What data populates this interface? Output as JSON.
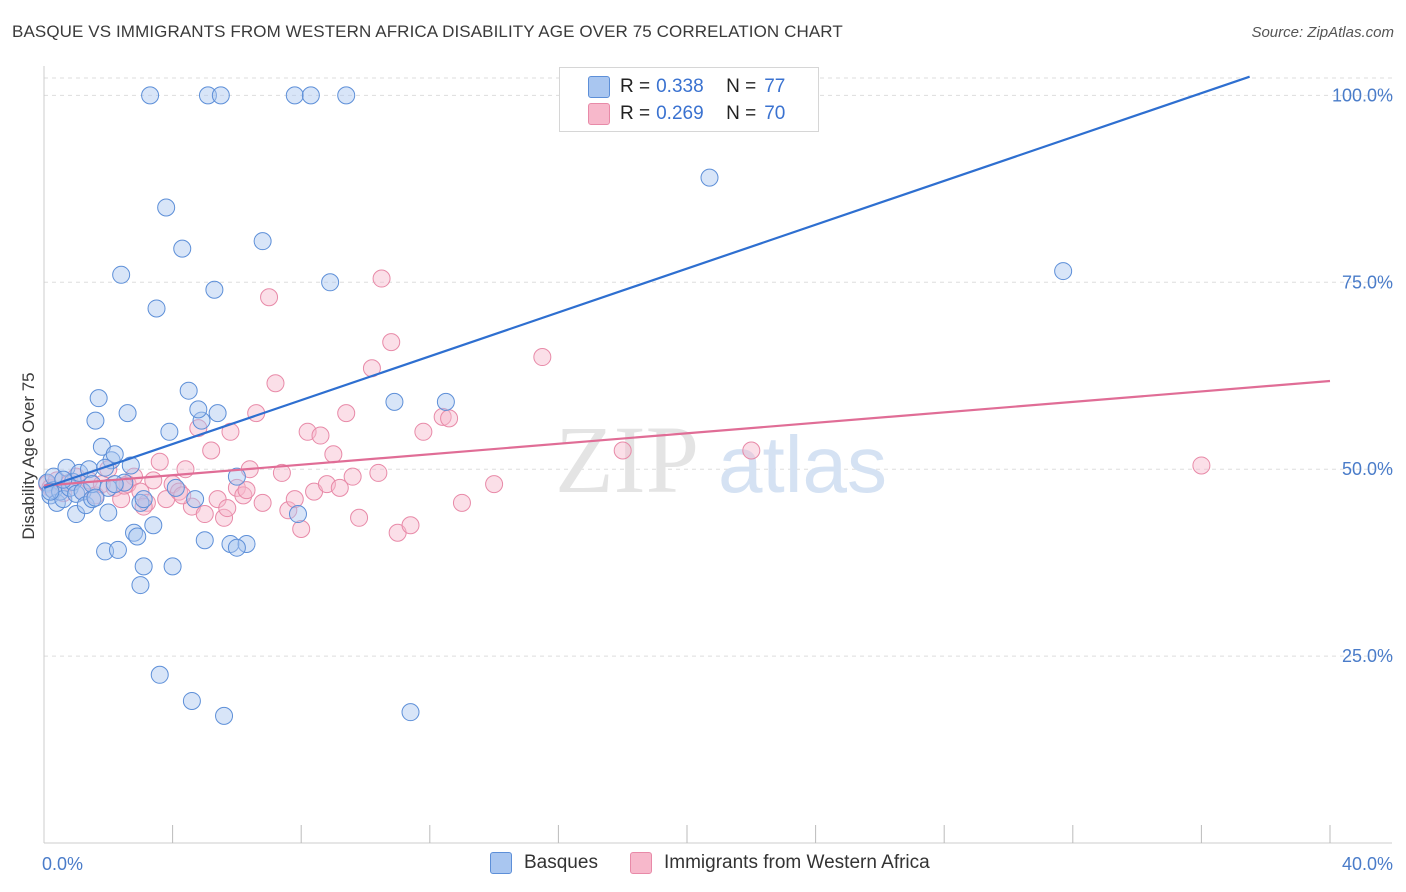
{
  "title": "BASQUE VS IMMIGRANTS FROM WESTERN AFRICA DISABILITY AGE OVER 75 CORRELATION CHART",
  "source": "Source: ZipAtlas.com",
  "watermark": {
    "zip": "ZIP",
    "atlas": "atlas"
  },
  "legend_top": [
    {
      "r_key": "R =",
      "r_value": "0.338",
      "n_key": "N =",
      "n_value": "77"
    },
    {
      "r_key": "R =",
      "r_value": "0.269",
      "n_key": "N =",
      "n_value": "70"
    }
  ],
  "legend_bottom": [
    "Basques",
    "Immigrants from Western Africa"
  ],
  "colors": {
    "basque_fill": "#a9c6f0",
    "basque_stroke": "#5d8fd8",
    "basque_line": "#2e6fd0",
    "africa_fill": "#f7b8cb",
    "africa_stroke": "#e88aa8",
    "africa_line": "#e06d96",
    "tick_label": "#4a7cc9",
    "grid": "#dddddd"
  },
  "chart_data": {
    "type": "scatter",
    "title": "BASQUE VS IMMIGRANTS FROM WESTERN AFRICA DISABILITY AGE OVER 75 CORRELATION CHART",
    "xlabel": "",
    "ylabel": "Disability Age Over 75",
    "xlim": [
      0,
      40
    ],
    "ylim": [
      0,
      105
    ],
    "x_tick_labels": [
      "0.0%",
      "40.0%"
    ],
    "y_ticks": [
      25,
      50,
      75,
      100
    ],
    "y_tick_labels": [
      "25.0%",
      "50.0%",
      "75.0%",
      "100.0%"
    ],
    "x_minor_ticks": [
      4,
      8,
      12,
      16,
      20,
      24,
      28,
      32,
      36,
      40
    ],
    "grid": true,
    "legend_position": "top-center",
    "series": [
      {
        "name": "Basques",
        "r": 0.338,
        "n": 77,
        "trend": {
          "x": [
            0,
            37.5
          ],
          "y": [
            47.5,
            102.5
          ]
        },
        "points": [
          [
            0.1,
            48.2
          ],
          [
            0.2,
            46.5
          ],
          [
            0.3,
            47.2
          ],
          [
            0.3,
            49.0
          ],
          [
            0.4,
            45.5
          ],
          [
            0.5,
            47.0
          ],
          [
            0.6,
            46.0
          ],
          [
            0.7,
            50.2
          ],
          [
            0.8,
            47.5
          ],
          [
            0.9,
            48.3
          ],
          [
            1.0,
            46.7
          ],
          [
            1.0,
            44.0
          ],
          [
            1.1,
            49.5
          ],
          [
            1.2,
            47.0
          ],
          [
            1.3,
            45.2
          ],
          [
            1.4,
            50.0
          ],
          [
            1.5,
            46.0
          ],
          [
            1.5,
            48.0
          ],
          [
            1.6,
            56.5
          ],
          [
            1.7,
            59.5
          ],
          [
            1.8,
            53.0
          ],
          [
            1.9,
            39.0
          ],
          [
            2.0,
            47.5
          ],
          [
            2.1,
            51.2
          ],
          [
            2.2,
            52.0
          ],
          [
            2.3,
            39.2
          ],
          [
            2.4,
            76.0
          ],
          [
            2.5,
            48.2
          ],
          [
            2.6,
            57.5
          ],
          [
            2.7,
            50.5
          ],
          [
            2.8,
            41.5
          ],
          [
            2.9,
            41.0
          ],
          [
            3.0,
            45.5
          ],
          [
            3.1,
            46.0
          ],
          [
            3.1,
            37.0
          ],
          [
            3.3,
            100.0
          ],
          [
            3.4,
            42.5
          ],
          [
            3.5,
            71.5
          ],
          [
            3.6,
            22.5
          ],
          [
            3.8,
            85.0
          ],
          [
            3.9,
            55.0
          ],
          [
            4.0,
            37.0
          ],
          [
            4.1,
            47.5
          ],
          [
            4.3,
            79.5
          ],
          [
            4.5,
            60.5
          ],
          [
            4.6,
            19.0
          ],
          [
            4.7,
            46.0
          ],
          [
            4.9,
            56.5
          ],
          [
            5.0,
            40.5
          ],
          [
            5.1,
            100.0
          ],
          [
            5.3,
            74.0
          ],
          [
            5.4,
            57.5
          ],
          [
            5.5,
            100.0
          ],
          [
            5.6,
            17.0
          ],
          [
            5.8,
            40.0
          ],
          [
            6.0,
            49.0
          ],
          [
            6.3,
            40.0
          ],
          [
            6.8,
            80.5
          ],
          [
            7.8,
            100.0
          ],
          [
            7.9,
            44.0
          ],
          [
            8.3,
            100.0
          ],
          [
            8.9,
            75.0
          ],
          [
            9.4,
            100.0
          ],
          [
            10.9,
            59.0
          ],
          [
            11.4,
            17.5
          ],
          [
            12.5,
            59.0
          ],
          [
            20.7,
            89.0
          ],
          [
            31.7,
            76.5
          ],
          [
            0.2,
            47.0
          ],
          [
            0.6,
            48.6
          ],
          [
            1.6,
            46.2
          ],
          [
            2.0,
            44.2
          ],
          [
            4.8,
            58.0
          ],
          [
            6.0,
            39.5
          ],
          [
            3.0,
            34.5
          ],
          [
            2.2,
            48.0
          ],
          [
            1.9,
            50.2
          ]
        ]
      },
      {
        "name": "Immigrants from Western Africa",
        "r": 0.269,
        "n": 70,
        "trend": {
          "x": [
            0,
            40
          ],
          "y": [
            47.8,
            61.8
          ]
        },
        "points": [
          [
            0.1,
            48.0
          ],
          [
            0.2,
            47.5
          ],
          [
            0.4,
            48.5
          ],
          [
            0.6,
            46.8
          ],
          [
            0.8,
            48.2
          ],
          [
            1.0,
            49.0
          ],
          [
            1.2,
            47.0
          ],
          [
            1.4,
            48.5
          ],
          [
            1.6,
            46.5
          ],
          [
            1.8,
            48.0
          ],
          [
            2.0,
            50.0
          ],
          [
            2.2,
            47.5
          ],
          [
            2.4,
            46.0
          ],
          [
            2.6,
            48.0
          ],
          [
            2.8,
            49.0
          ],
          [
            3.0,
            47.0
          ],
          [
            3.2,
            45.5
          ],
          [
            3.4,
            48.5
          ],
          [
            3.6,
            51.0
          ],
          [
            3.8,
            46.0
          ],
          [
            4.0,
            48.0
          ],
          [
            4.2,
            47.0
          ],
          [
            4.4,
            50.0
          ],
          [
            4.6,
            45.0
          ],
          [
            4.8,
            55.5
          ],
          [
            5.0,
            44.0
          ],
          [
            5.2,
            52.5
          ],
          [
            5.4,
            46.0
          ],
          [
            5.6,
            43.5
          ],
          [
            5.8,
            55.0
          ],
          [
            6.0,
            47.5
          ],
          [
            6.2,
            46.5
          ],
          [
            6.4,
            50.0
          ],
          [
            6.6,
            57.5
          ],
          [
            6.8,
            45.5
          ],
          [
            7.0,
            73.0
          ],
          [
            7.2,
            61.5
          ],
          [
            7.4,
            49.5
          ],
          [
            7.6,
            44.5
          ],
          [
            7.8,
            46.0
          ],
          [
            8.0,
            42.0
          ],
          [
            8.2,
            55.0
          ],
          [
            8.4,
            47.0
          ],
          [
            8.6,
            54.5
          ],
          [
            8.8,
            48.0
          ],
          [
            9.0,
            52.0
          ],
          [
            9.2,
            47.5
          ],
          [
            9.4,
            57.5
          ],
          [
            9.8,
            43.5
          ],
          [
            10.2,
            63.5
          ],
          [
            10.5,
            75.5
          ],
          [
            10.8,
            67.0
          ],
          [
            11.0,
            41.5
          ],
          [
            11.4,
            42.5
          ],
          [
            11.8,
            55.0
          ],
          [
            12.4,
            57.0
          ],
          [
            13.0,
            45.5
          ],
          [
            14.0,
            48.0
          ],
          [
            15.5,
            65.0
          ],
          [
            18.0,
            52.5
          ],
          [
            22.0,
            52.5
          ],
          [
            36.0,
            50.5
          ],
          [
            9.6,
            49.0
          ],
          [
            10.4,
            49.5
          ],
          [
            12.6,
            56.8
          ],
          [
            6.3,
            47.2
          ],
          [
            5.7,
            44.8
          ],
          [
            4.3,
            46.5
          ],
          [
            3.1,
            45.0
          ],
          [
            2.5,
            47.8
          ]
        ]
      }
    ]
  }
}
